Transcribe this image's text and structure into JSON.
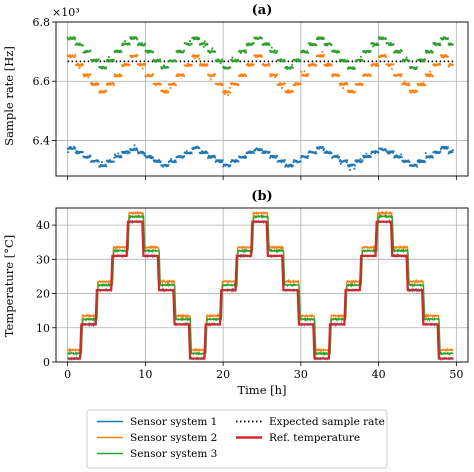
{
  "chart_data": [
    {
      "type": "scatter",
      "title": "(a)",
      "xlabel": "",
      "ylabel": "Sample rate [Hz]",
      "offset_label": "×10³",
      "xlim": [
        -1.5,
        51.5
      ],
      "ylim": [
        6.28,
        6.8
      ],
      "yticks": [
        6.4,
        6.6,
        6.8
      ],
      "xticks": [
        0,
        10,
        20,
        30,
        40,
        50
      ],
      "grid": true,
      "period_h": 16,
      "step_x": [
        0,
        1,
        2,
        3,
        4,
        5,
        6,
        7,
        8,
        9,
        10,
        11,
        12,
        13,
        14,
        15,
        16
      ],
      "series": [
        {
          "name": "Sensor system 1",
          "color": "#1f77b4",
          "step_y": [
            6.375,
            6.36,
            6.345,
            6.33,
            6.315,
            6.33,
            6.345,
            6.36,
            6.37,
            6.36,
            6.345,
            6.33,
            6.315,
            6.33,
            6.345,
            6.36,
            6.375
          ]
        },
        {
          "name": "Sensor system 2",
          "color": "#ff7f0e",
          "step_y": [
            6.685,
            6.655,
            6.62,
            6.59,
            6.565,
            6.59,
            6.62,
            6.655,
            6.685,
            6.655,
            6.62,
            6.59,
            6.565,
            6.59,
            6.62,
            6.655,
            6.685
          ]
        },
        {
          "name": "Sensor system 3",
          "color": "#2ca02c",
          "step_y": [
            6.745,
            6.725,
            6.7,
            6.67,
            6.645,
            6.67,
            6.7,
            6.725,
            6.745,
            6.725,
            6.7,
            6.67,
            6.645,
            6.67,
            6.7,
            6.725,
            6.745
          ]
        }
      ],
      "reference": {
        "name": "Expected sample rate",
        "value": 6.667,
        "color": "#000000",
        "style": "dotted"
      }
    },
    {
      "type": "line",
      "title": "(b)",
      "xlabel": "Time [h]",
      "ylabel": "Temperature [°C]",
      "xlim": [
        -1.5,
        51.5
      ],
      "ylim": [
        0,
        45
      ],
      "yticks": [
        0,
        10,
        20,
        30,
        40
      ],
      "xticks": [
        0,
        10,
        20,
        30,
        40,
        50
      ],
      "grid": true,
      "period_h": 16,
      "step_x": [
        0,
        1,
        2,
        3,
        4,
        5,
        6,
        7,
        8,
        9,
        10,
        11,
        12,
        13,
        14,
        15,
        16
      ],
      "ref_levels": [
        1,
        11,
        21,
        31,
        41,
        31,
        21,
        11,
        1
      ],
      "series": [
        {
          "name": "Sensor system 1",
          "color": "#1f77b4",
          "offset": 0
        },
        {
          "name": "Sensor system 2",
          "color": "#ff7f0e",
          "offset": 2.5
        },
        {
          "name": "Sensor system 3",
          "color": "#2ca02c",
          "offset": 1.5
        }
      ],
      "reference": {
        "name": "Ref. temperature",
        "color": "#d62728",
        "offset": 0
      }
    }
  ],
  "legend": {
    "placement": "bottom-center",
    "entries": [
      {
        "label": "Sensor system 1",
        "color": "#1f77b4",
        "style": "solid"
      },
      {
        "label": "Expected sample rate",
        "color": "#000000",
        "style": "dotted"
      },
      {
        "label": "Sensor system 2",
        "color": "#ff7f0e",
        "style": "solid"
      },
      {
        "label": "Ref. temperature",
        "color": "#d62728",
        "style": "thick"
      },
      {
        "label": "Sensor system 3",
        "color": "#2ca02c",
        "style": "solid"
      }
    ]
  }
}
